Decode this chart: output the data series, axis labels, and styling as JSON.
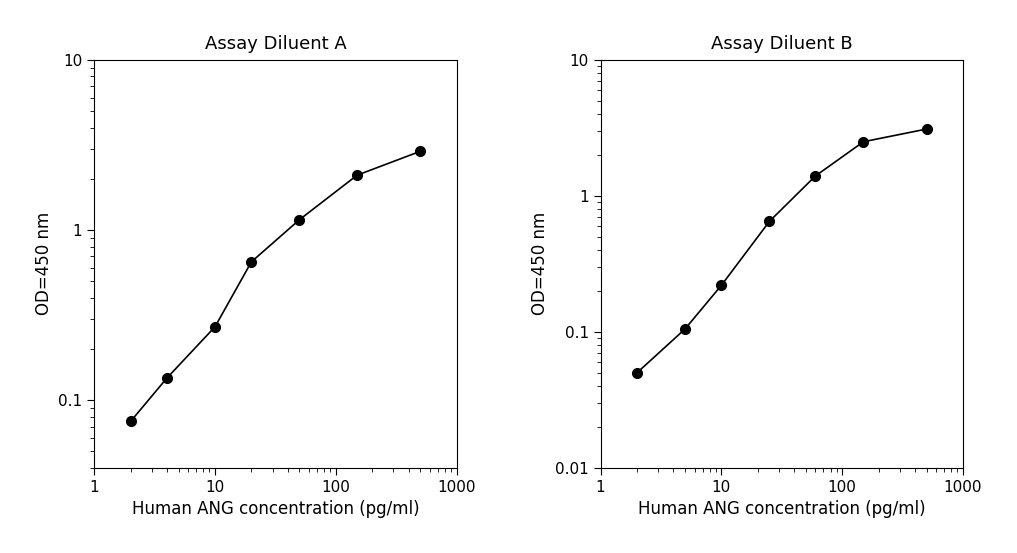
{
  "panel_A": {
    "title": "Assay Diluent A",
    "x": [
      2,
      4,
      10,
      20,
      50,
      150,
      500
    ],
    "y": [
      0.075,
      0.135,
      0.27,
      0.65,
      1.15,
      2.1,
      2.9
    ],
    "xlim": [
      1,
      1000
    ],
    "ylim": [
      0.04,
      10
    ],
    "yticks": [
      0.1,
      1,
      10
    ],
    "yticklabels": [
      "0.1",
      "1",
      "10"
    ],
    "xticks": [
      1,
      10,
      100,
      1000
    ],
    "xticklabels": [
      "1",
      "10",
      "100",
      "1000"
    ]
  },
  "panel_B": {
    "title": "Assay Diluent B",
    "x": [
      2,
      5,
      10,
      25,
      60,
      150,
      500
    ],
    "y": [
      0.05,
      0.105,
      0.22,
      0.65,
      1.4,
      2.5,
      3.1
    ],
    "xlim": [
      1,
      1000
    ],
    "ylim": [
      0.01,
      10
    ],
    "yticks": [
      0.01,
      0.1,
      1,
      10
    ],
    "yticklabels": [
      "0.01",
      "0.1",
      "1",
      "10"
    ],
    "xticks": [
      1,
      10,
      100,
      1000
    ],
    "xticklabels": [
      "1",
      "10",
      "100",
      "1000"
    ]
  },
  "xlabel": "Human ANG concentration (pg/ml)",
  "ylabel": "OD=450 nm",
  "line_color": "#000000",
  "marker": "o",
  "markersize": 7,
  "markerfacecolor": "#000000",
  "background_color": "#ffffff",
  "title_fontsize": 13,
  "label_fontsize": 12,
  "tick_fontsize": 11
}
